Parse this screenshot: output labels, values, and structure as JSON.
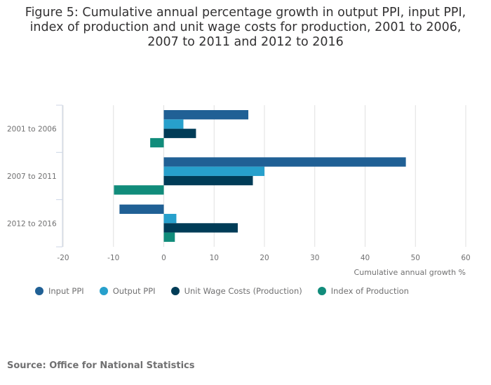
{
  "title": "Figure 5: Cumulative annual percentage growth in output PPI, input PPI, index of production and unit wage costs for production, 2001 to 2006, 2007 to 2011 and 2012 to 2016",
  "source": "Source: Office for National Statistics",
  "chart_data": {
    "type": "bar",
    "orientation": "horizontal",
    "title": "Figure 5: Cumulative annual percentage growth in output PPI, input PPI, index of production and unit wage costs for production, 2001 to 2006, 2007 to 2011 and 2012 to 2016",
    "categories": [
      "2001 to 2006",
      "2007 to 2011",
      "2012 to 2016"
    ],
    "series": [
      {
        "name": "Input PPI",
        "color": "#206095",
        "values": [
          16.8,
          48.1,
          -8.8
        ]
      },
      {
        "name": "Output PPI",
        "color": "#27a0cc",
        "values": [
          3.9,
          20.0,
          2.5
        ]
      },
      {
        "name": "Unit Wage Costs (Production)",
        "color": "#003c57",
        "values": [
          6.4,
          17.7,
          14.7
        ]
      },
      {
        "name": "Index of Production",
        "color": "#118c7b",
        "values": [
          -2.7,
          -9.9,
          2.2
        ]
      }
    ],
    "xlabel": "Cumulative annual growth %",
    "ylabel": "",
    "xlim": [
      -20,
      60
    ],
    "xticks": [
      -20,
      -10,
      0,
      10,
      20,
      30,
      40,
      50,
      60
    ],
    "grid": true,
    "legend": "bottom-left"
  }
}
